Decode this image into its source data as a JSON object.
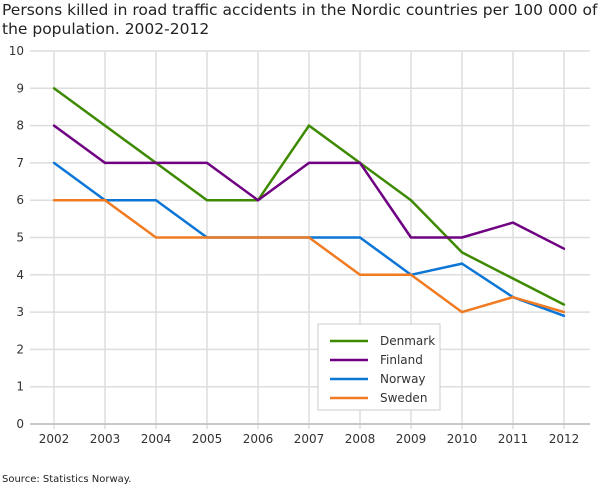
{
  "chart_data": {
    "type": "line",
    "title": "Persons killed in road traffic accidents in the Nordic countries per 100 000 of the population. 2002-2012",
    "source": "Source: Statistics Norway.",
    "x": [
      2002,
      2003,
      2004,
      2005,
      2006,
      2007,
      2008,
      2009,
      2010,
      2011,
      2012
    ],
    "ylim": [
      0,
      10
    ],
    "yticks": [
      0,
      1,
      2,
      3,
      4,
      5,
      6,
      7,
      8,
      9,
      10
    ],
    "grid": true,
    "legend_placement": "bottom-center",
    "series": [
      {
        "name": "Denmark",
        "color": "#3d8a00",
        "values": [
          9,
          8,
          7,
          6,
          6,
          8,
          7,
          6,
          4.6,
          3.9,
          3.2
        ]
      },
      {
        "name": "Finland",
        "color": "#6f0082",
        "values": [
          8,
          7,
          7,
          7,
          6,
          7,
          7,
          5,
          5,
          5.4,
          4.7
        ]
      },
      {
        "name": "Norway",
        "color": "#0c76d6",
        "values": [
          7,
          6,
          6,
          5,
          5,
          5,
          5,
          4,
          4.3,
          3.4,
          2.9
        ]
      },
      {
        "name": "Sweden",
        "color": "#f07b22",
        "values": [
          6,
          6,
          5,
          5,
          5,
          5,
          4,
          4,
          3,
          3.4,
          3.0
        ]
      }
    ]
  }
}
